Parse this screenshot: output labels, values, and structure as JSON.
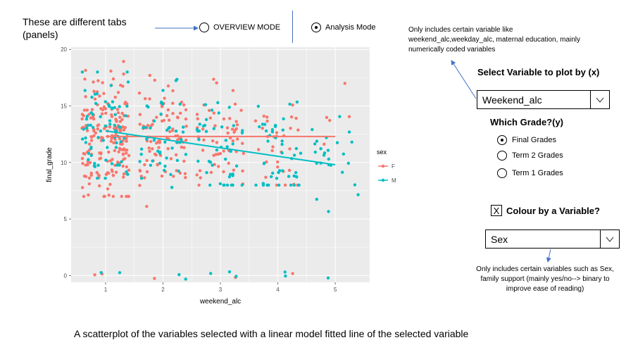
{
  "annotations": {
    "tabs_note": "These are different tabs (panels)",
    "variable_note": "Only includes certain variable like weekend_alc,weekday_alc, maternal education, mainly numerically coded variables",
    "colour_note": "Only includes certain variables such as Sex, family support (mainly yes/no--> binary to improve ease of reading)",
    "caption": "A scatterplot of the variables selected with a linear model fitted line of the selected variable"
  },
  "tabs": [
    {
      "label": "OVERVIEW MODE",
      "selected": false
    },
    {
      "label": "Analysis Mode",
      "selected": true
    }
  ],
  "controls": {
    "x_select_label": "Select Variable to plot by (x)",
    "x_select_value": "Weekend_alc",
    "grade_label": "Which Grade?(y)",
    "grade_options": [
      {
        "label": "Final Grades",
        "selected": true
      },
      {
        "label": "Term 2 Grades",
        "selected": false
      },
      {
        "label": "Term 1 Grades",
        "selected": false
      }
    ],
    "colour_checkbox_mark": "X",
    "colour_label": "Colour by a Variable?",
    "colour_select_value": "Sex"
  },
  "colors": {
    "F": "#f8766d",
    "M": "#00bfc4",
    "panel": "#ebebeb",
    "grid": "#ffffff",
    "arrow": "#4472c4"
  },
  "chart_data": {
    "type": "scatter",
    "xlabel": "weekend_alc",
    "ylabel": "final_grade",
    "x_ticks": [
      1,
      2,
      3,
      4,
      5
    ],
    "y_ticks": [
      0,
      5,
      10,
      15,
      20
    ],
    "xlim": [
      0.4,
      5.6
    ],
    "ylim": [
      -0.6,
      20.2
    ],
    "legend_title": "sex",
    "legend": [
      {
        "key": "F",
        "label": "F"
      },
      {
        "key": "M",
        "label": "M"
      }
    ],
    "fit_lines": [
      {
        "group": "F",
        "x": [
          1,
          5
        ],
        "y": [
          12.3,
          12.3
        ]
      },
      {
        "group": "M",
        "x": [
          1,
          5
        ],
        "y": [
          12.8,
          9.8
        ]
      }
    ],
    "point_summary": [
      {
        "x": 1,
        "group": "F",
        "n": 190,
        "ymin": 7,
        "ymax": 19,
        "mean": 12,
        "zeros": 2
      },
      {
        "x": 1,
        "group": "M",
        "n": 70,
        "ymin": 8,
        "ymax": 18,
        "mean": 13,
        "zeros": 2
      },
      {
        "x": 2,
        "group": "F",
        "n": 90,
        "ymin": 6,
        "ymax": 18,
        "mean": 12,
        "zeros": 1
      },
      {
        "x": 2,
        "group": "M",
        "n": 45,
        "ymin": 6,
        "ymax": 18,
        "mean": 12,
        "zeros": 2
      },
      {
        "x": 3,
        "group": "F",
        "n": 55,
        "ymin": 8,
        "ymax": 18,
        "mean": 12,
        "zeros": 1
      },
      {
        "x": 3,
        "group": "M",
        "n": 45,
        "ymin": 8,
        "ymax": 17,
        "mean": 11,
        "zeros": 3
      },
      {
        "x": 4,
        "group": "F",
        "n": 30,
        "ymin": 8,
        "ymax": 17,
        "mean": 12,
        "zeros": 1
      },
      {
        "x": 4,
        "group": "M",
        "n": 45,
        "ymin": 8,
        "ymax": 19,
        "mean": 10.5,
        "zeros": 2
      },
      {
        "x": 5,
        "group": "F",
        "n": 5,
        "ymin": 10,
        "ymax": 17,
        "mean": 12.5,
        "zeros": 0
      },
      {
        "x": 5,
        "group": "M",
        "n": 25,
        "ymin": 5,
        "ymax": 17,
        "mean": 10,
        "zeros": 1
      }
    ]
  }
}
